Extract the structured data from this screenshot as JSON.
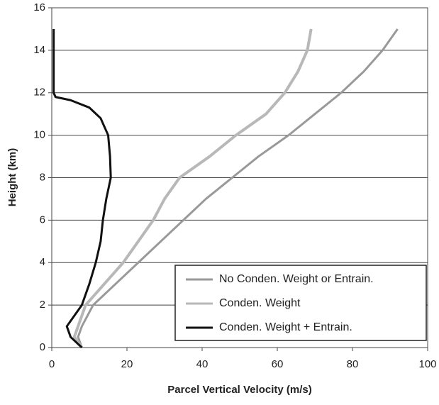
{
  "chart_data": {
    "type": "line",
    "xlabel": "Parcel Vertical Velocity (m/s)",
    "ylabel": "Height (km)",
    "xlim": [
      0,
      100
    ],
    "xticks": [
      0,
      20,
      40,
      60,
      80,
      100
    ],
    "ylim": [
      0,
      16
    ],
    "yticks": [
      0,
      2,
      4,
      6,
      8,
      10,
      12,
      14,
      16
    ],
    "grid": true,
    "legend": "lower right",
    "series": [
      {
        "name": "No Conden. Weight or Entrain.",
        "color": "#999999",
        "x": [
          8,
          7,
          8,
          11,
          17,
          23,
          29,
          35,
          41,
          48,
          55,
          63,
          70,
          77,
          83,
          88,
          92
        ],
        "values": [
          0,
          0.5,
          1,
          2,
          3,
          4,
          5,
          6,
          7,
          8,
          9,
          10,
          11,
          12,
          13,
          14,
          15
        ]
      },
      {
        "name": "Conden. Weight",
        "color": "#b8b8b8",
        "x": [
          8,
          6,
          7,
          9,
          14,
          19,
          23,
          27,
          30,
          34,
          42,
          49,
          57,
          62,
          65.5,
          68,
          69
        ],
        "values": [
          0,
          0.5,
          1,
          2,
          3,
          4,
          5,
          6,
          7,
          8,
          9,
          10,
          11,
          12,
          13,
          14,
          15
        ]
      },
      {
        "name": "Conden. Weight + Entrain.",
        "color": "#111111",
        "x": [
          8,
          5,
          4,
          6,
          8,
          10,
          11.7,
          13,
          13.6,
          14.5,
          15.7,
          15.5,
          15,
          13,
          10,
          5,
          1,
          0.5,
          0.5
        ],
        "values": [
          0,
          0.5,
          1,
          1.5,
          2,
          3,
          4,
          5,
          6,
          7,
          8,
          9,
          10,
          10.8,
          11.3,
          11.65,
          11.8,
          12,
          15
        ]
      }
    ]
  }
}
